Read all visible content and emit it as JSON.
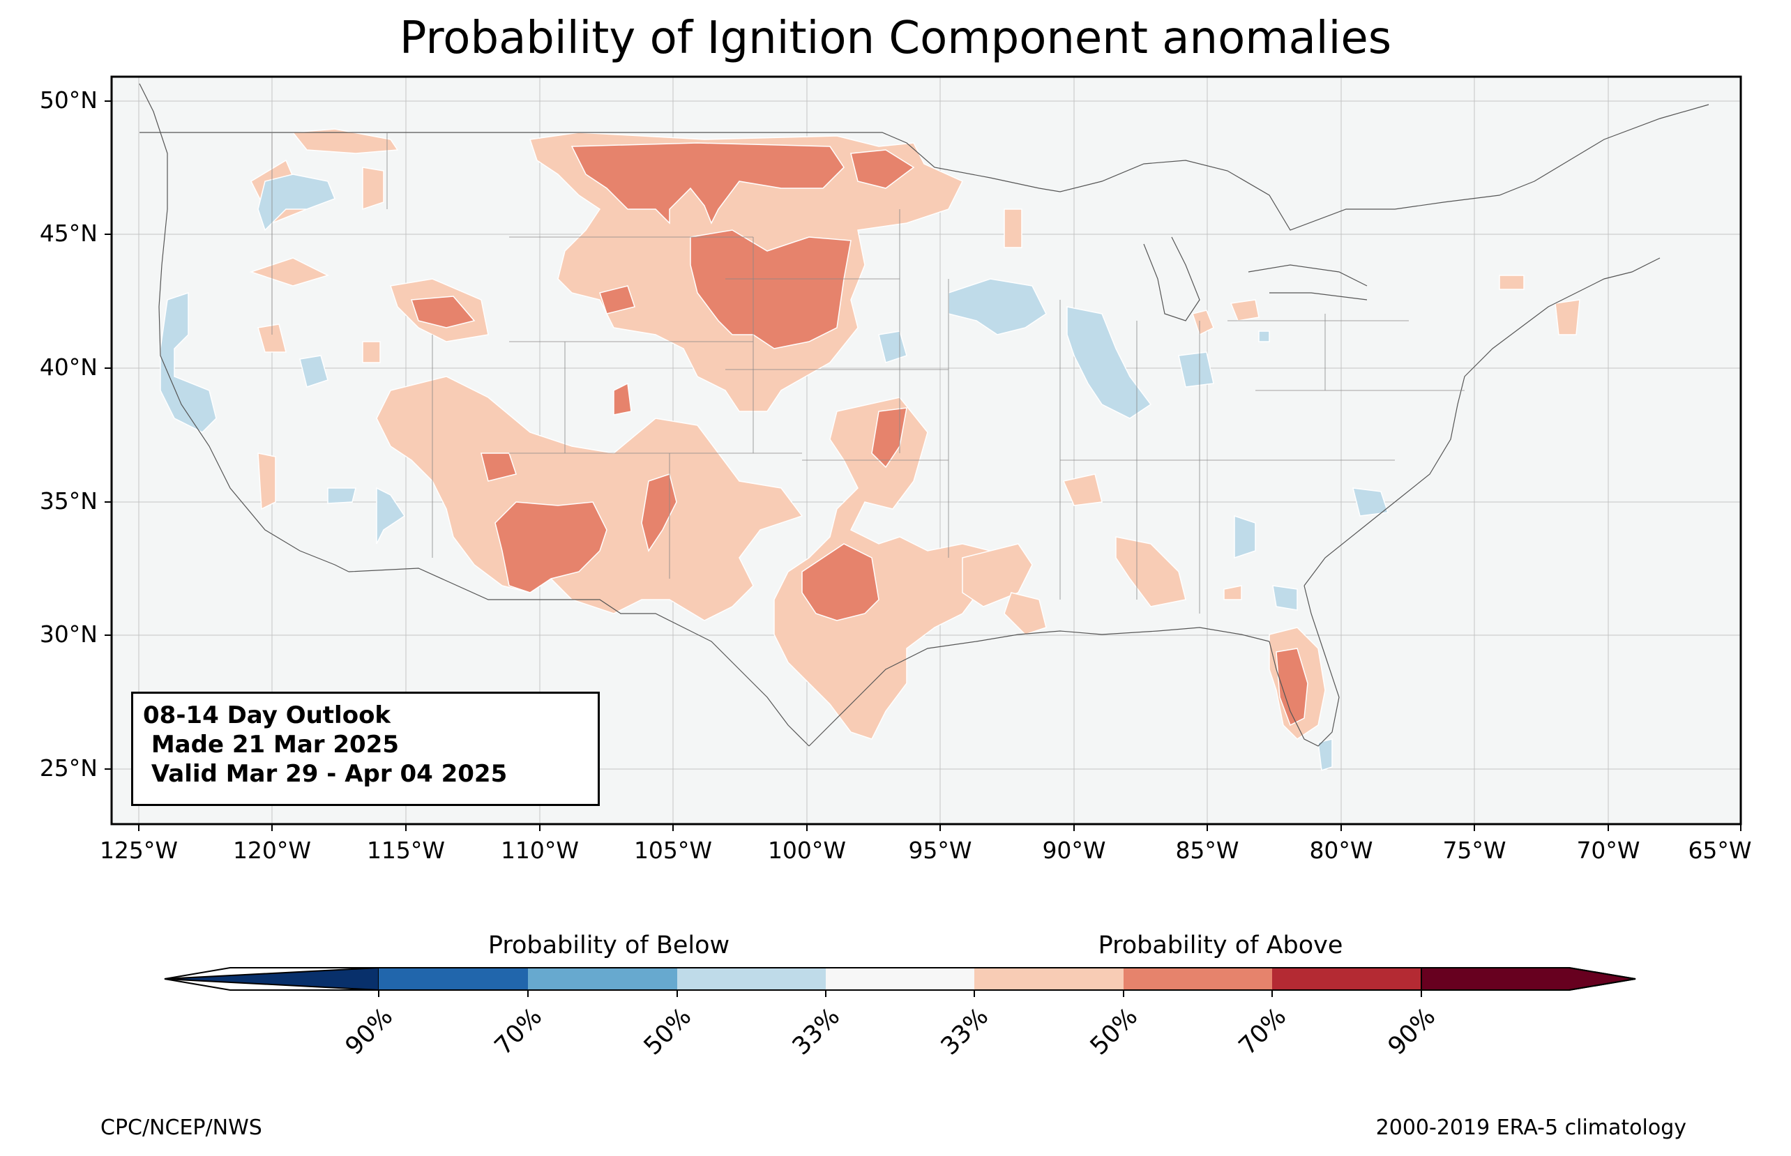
{
  "title": "Probability of Ignition Component anomalies",
  "map": {
    "lat_range": [
      23,
      51
    ],
    "lon_range": [
      -126,
      -65
    ],
    "lat_ticks": [
      "50°N",
      "45°N",
      "40°N",
      "35°N",
      "30°N",
      "25°N"
    ],
    "lon_ticks": [
      "125°W",
      "120°W",
      "115°W",
      "110°W",
      "105°W",
      "100°W",
      "95°W",
      "90°W",
      "85°W",
      "80°W",
      "75°W",
      "70°W",
      "65°W"
    ],
    "background_color": "#f4f6f6"
  },
  "outlook": {
    "line1": "08-14 Day Outlook",
    "line2": " Made 21 Mar 2025",
    "line3": " Valid Mar 29 - Apr 04 2025"
  },
  "colorbar": {
    "below_label": "Probability of Below",
    "above_label": "Probability of Above",
    "tick_labels": [
      "90%",
      "70%",
      "50%",
      "33%",
      "33%",
      "50%",
      "70%",
      "90%"
    ],
    "colors": [
      "#08306b",
      "#2166ac",
      "#67a9cf",
      "#bfdbe9",
      "#f7f7f7",
      "#f8ccb5",
      "#e6836c",
      "#b42a33",
      "#67001f"
    ]
  },
  "footer": {
    "left": "CPC/NCEP/NWS",
    "right": "2000-2019 ERA-5 climatology"
  }
}
